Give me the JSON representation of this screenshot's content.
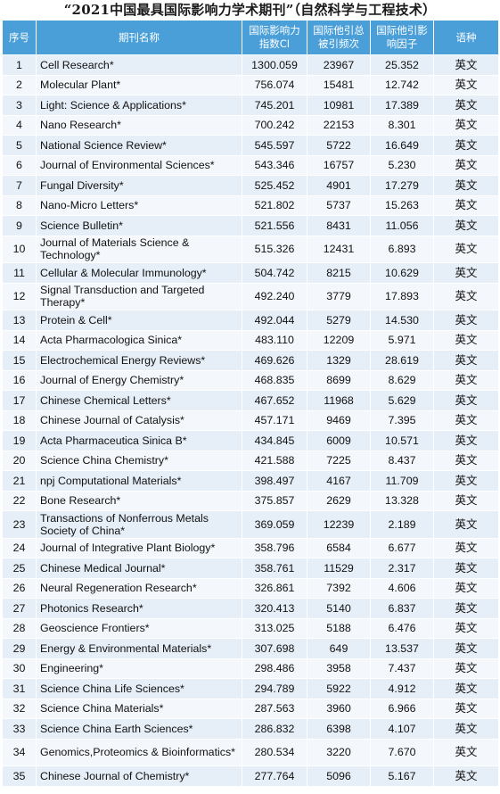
{
  "title": "“2021中国最具国际影响力学术期刊”（自然科学与工程技术）",
  "headers": {
    "rank": "序号",
    "name": "期刊名称",
    "ci": "国际影响力指数CI",
    "citations": "国际他引总被引频次",
    "impact": "国际他引影响因子",
    "language": "语种"
  },
  "rows": [
    {
      "rank": "1",
      "name": "Cell Research*",
      "ci": "1300.059",
      "citations": "23967",
      "impact": "25.352",
      "language": "英文"
    },
    {
      "rank": "2",
      "name": "Molecular Plant*",
      "ci": "756.074",
      "citations": "15481",
      "impact": "12.742",
      "language": "英文"
    },
    {
      "rank": "3",
      "name": "Light: Science & Applications*",
      "ci": "745.201",
      "citations": "10981",
      "impact": "17.389",
      "language": "英文"
    },
    {
      "rank": "4",
      "name": "Nano Research*",
      "ci": "700.242",
      "citations": "22153",
      "impact": "8.301",
      "language": "英文"
    },
    {
      "rank": "5",
      "name": "National Science Review*",
      "ci": "545.597",
      "citations": "5722",
      "impact": "16.649",
      "language": "英文"
    },
    {
      "rank": "6",
      "name": "Journal of Environmental Sciences*",
      "ci": "543.346",
      "citations": "16757",
      "impact": "5.230",
      "language": "英文"
    },
    {
      "rank": "7",
      "name": "Fungal Diversity*",
      "ci": "525.452",
      "citations": "4901",
      "impact": "17.279",
      "language": "英文"
    },
    {
      "rank": "8",
      "name": "Nano-Micro Letters*",
      "ci": "521.802",
      "citations": "5737",
      "impact": "15.263",
      "language": "英文"
    },
    {
      "rank": "9",
      "name": "Science Bulletin*",
      "ci": "521.556",
      "citations": "8431",
      "impact": "11.056",
      "language": "英文"
    },
    {
      "rank": "10",
      "name": "Journal of Materials Science & Technology*",
      "ci": "515.326",
      "citations": "12431",
      "impact": "6.893",
      "language": "英文"
    },
    {
      "rank": "11",
      "name": "Cellular & Molecular Immunology*",
      "ci": "504.742",
      "citations": "8215",
      "impact": "10.629",
      "language": "英文"
    },
    {
      "rank": "12",
      "name": "Signal Transduction and Targeted Therapy*",
      "ci": "492.240",
      "citations": "3779",
      "impact": "17.893",
      "language": "英文"
    },
    {
      "rank": "13",
      "name": "Protein & Cell*",
      "ci": "492.044",
      "citations": "5279",
      "impact": "14.530",
      "language": "英文"
    },
    {
      "rank": "14",
      "name": "Acta Pharmacologica Sinica*",
      "ci": "483.110",
      "citations": "12209",
      "impact": "5.971",
      "language": "英文"
    },
    {
      "rank": "15",
      "name": "Electrochemical Energy Reviews*",
      "ci": "469.626",
      "citations": "1329",
      "impact": "28.619",
      "language": "英文"
    },
    {
      "rank": "16",
      "name": "Journal of Energy Chemistry*",
      "ci": "468.835",
      "citations": "8699",
      "impact": "8.629",
      "language": "英文"
    },
    {
      "rank": "17",
      "name": "Chinese Chemical Letters*",
      "ci": "467.652",
      "citations": "11968",
      "impact": "5.629",
      "language": "英文"
    },
    {
      "rank": "18",
      "name": "Chinese Journal of Catalysis*",
      "ci": "457.171",
      "citations": "9469",
      "impact": "7.395",
      "language": "英文"
    },
    {
      "rank": "19",
      "name": "Acta Pharmaceutica Sinica B*",
      "ci": "434.845",
      "citations": "6009",
      "impact": "10.571",
      "language": "英文"
    },
    {
      "rank": "20",
      "name": "Science China Chemistry*",
      "ci": "421.588",
      "citations": "7225",
      "impact": "8.437",
      "language": "英文"
    },
    {
      "rank": "21",
      "name": "npj Computational Materials*",
      "ci": "398.497",
      "citations": "4167",
      "impact": "11.709",
      "language": "英文"
    },
    {
      "rank": "22",
      "name": "Bone Research*",
      "ci": "375.857",
      "citations": "2629",
      "impact": "13.328",
      "language": "英文"
    },
    {
      "rank": "23",
      "name": "Transactions of Nonferrous Metals Society of China*",
      "ci": "369.059",
      "citations": "12239",
      "impact": "2.189",
      "language": "英文"
    },
    {
      "rank": "24",
      "name": "Journal of Integrative Plant Biology*",
      "ci": "358.796",
      "citations": "6584",
      "impact": "6.677",
      "language": "英文"
    },
    {
      "rank": "25",
      "name": "Chinese Medical Journal*",
      "ci": "358.761",
      "citations": "11529",
      "impact": "2.317",
      "language": "英文"
    },
    {
      "rank": "26",
      "name": "Neural Regeneration Research*",
      "ci": "326.861",
      "citations": "7392",
      "impact": "4.606",
      "language": "英文"
    },
    {
      "rank": "27",
      "name": "Photonics Research*",
      "ci": "320.413",
      "citations": "5140",
      "impact": "6.837",
      "language": "英文"
    },
    {
      "rank": "28",
      "name": "Geoscience Frontiers*",
      "ci": "313.025",
      "citations": "5188",
      "impact": "6.476",
      "language": "英文"
    },
    {
      "rank": "29",
      "name": "Energy & Environmental Materials*",
      "ci": "307.698",
      "citations": "649",
      "impact": "13.537",
      "language": "英文"
    },
    {
      "rank": "30",
      "name": "Engineering*",
      "ci": "298.486",
      "citations": "3958",
      "impact": "7.437",
      "language": "英文"
    },
    {
      "rank": "31",
      "name": "Science China Life Sciences*",
      "ci": "294.789",
      "citations": "5922",
      "impact": "4.912",
      "language": "英文"
    },
    {
      "rank": "32",
      "name": "Science China Materials*",
      "ci": "287.563",
      "citations": "3960",
      "impact": "6.966",
      "language": "英文"
    },
    {
      "rank": "33",
      "name": "Science China Earth Sciences*",
      "ci": "286.832",
      "citations": "6398",
      "impact": "4.107",
      "language": "英文"
    },
    {
      "rank": "34",
      "name": "Genomics,Proteomics & Bioinformatics*",
      "ci": "280.534",
      "citations": "3220",
      "impact": "7.670",
      "language": "英文"
    },
    {
      "rank": "35",
      "name": "Chinese Journal of Chemistry*",
      "ci": "277.764",
      "citations": "5096",
      "impact": "5.167",
      "language": "英文"
    }
  ]
}
